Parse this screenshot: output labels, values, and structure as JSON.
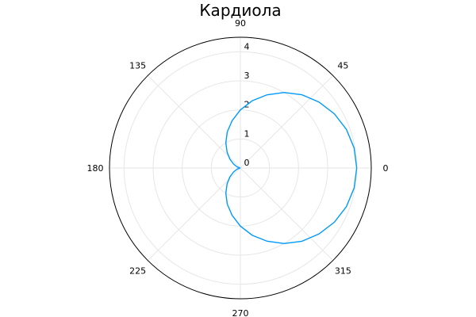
{
  "chart_data": {
    "type": "line",
    "projection": "polar",
    "title": "Кардиола",
    "angular_ticks": [
      "0",
      "45",
      "90",
      "135",
      "180",
      "225",
      "270",
      "315"
    ],
    "radial_ticks": [
      "0",
      "1",
      "2",
      "3",
      "4"
    ],
    "rlim": [
      0,
      4.5
    ],
    "grid": true,
    "legend": "none",
    "series": [
      {
        "color": "#009af9",
        "equation_note": "r = 2(1 + cos θ)",
        "theta_deg": [
          0,
          10,
          20,
          30,
          40,
          50,
          60,
          70,
          80,
          90,
          100,
          110,
          120,
          130,
          140,
          150,
          160,
          170,
          180,
          190,
          200,
          210,
          220,
          230,
          240,
          250,
          260,
          270,
          280,
          290,
          300,
          310,
          320,
          330,
          340,
          350,
          360
        ],
        "r": [
          4.0,
          3.97,
          3.88,
          3.73,
          3.53,
          3.29,
          3.0,
          2.68,
          2.35,
          2.0,
          1.65,
          1.32,
          1.0,
          0.71,
          0.47,
          0.27,
          0.12,
          0.03,
          0.0,
          0.03,
          0.12,
          0.27,
          0.47,
          0.71,
          1.0,
          1.32,
          1.65,
          2.0,
          2.35,
          2.68,
          3.0,
          3.29,
          3.53,
          3.73,
          3.88,
          3.97,
          4.0
        ]
      }
    ]
  }
}
